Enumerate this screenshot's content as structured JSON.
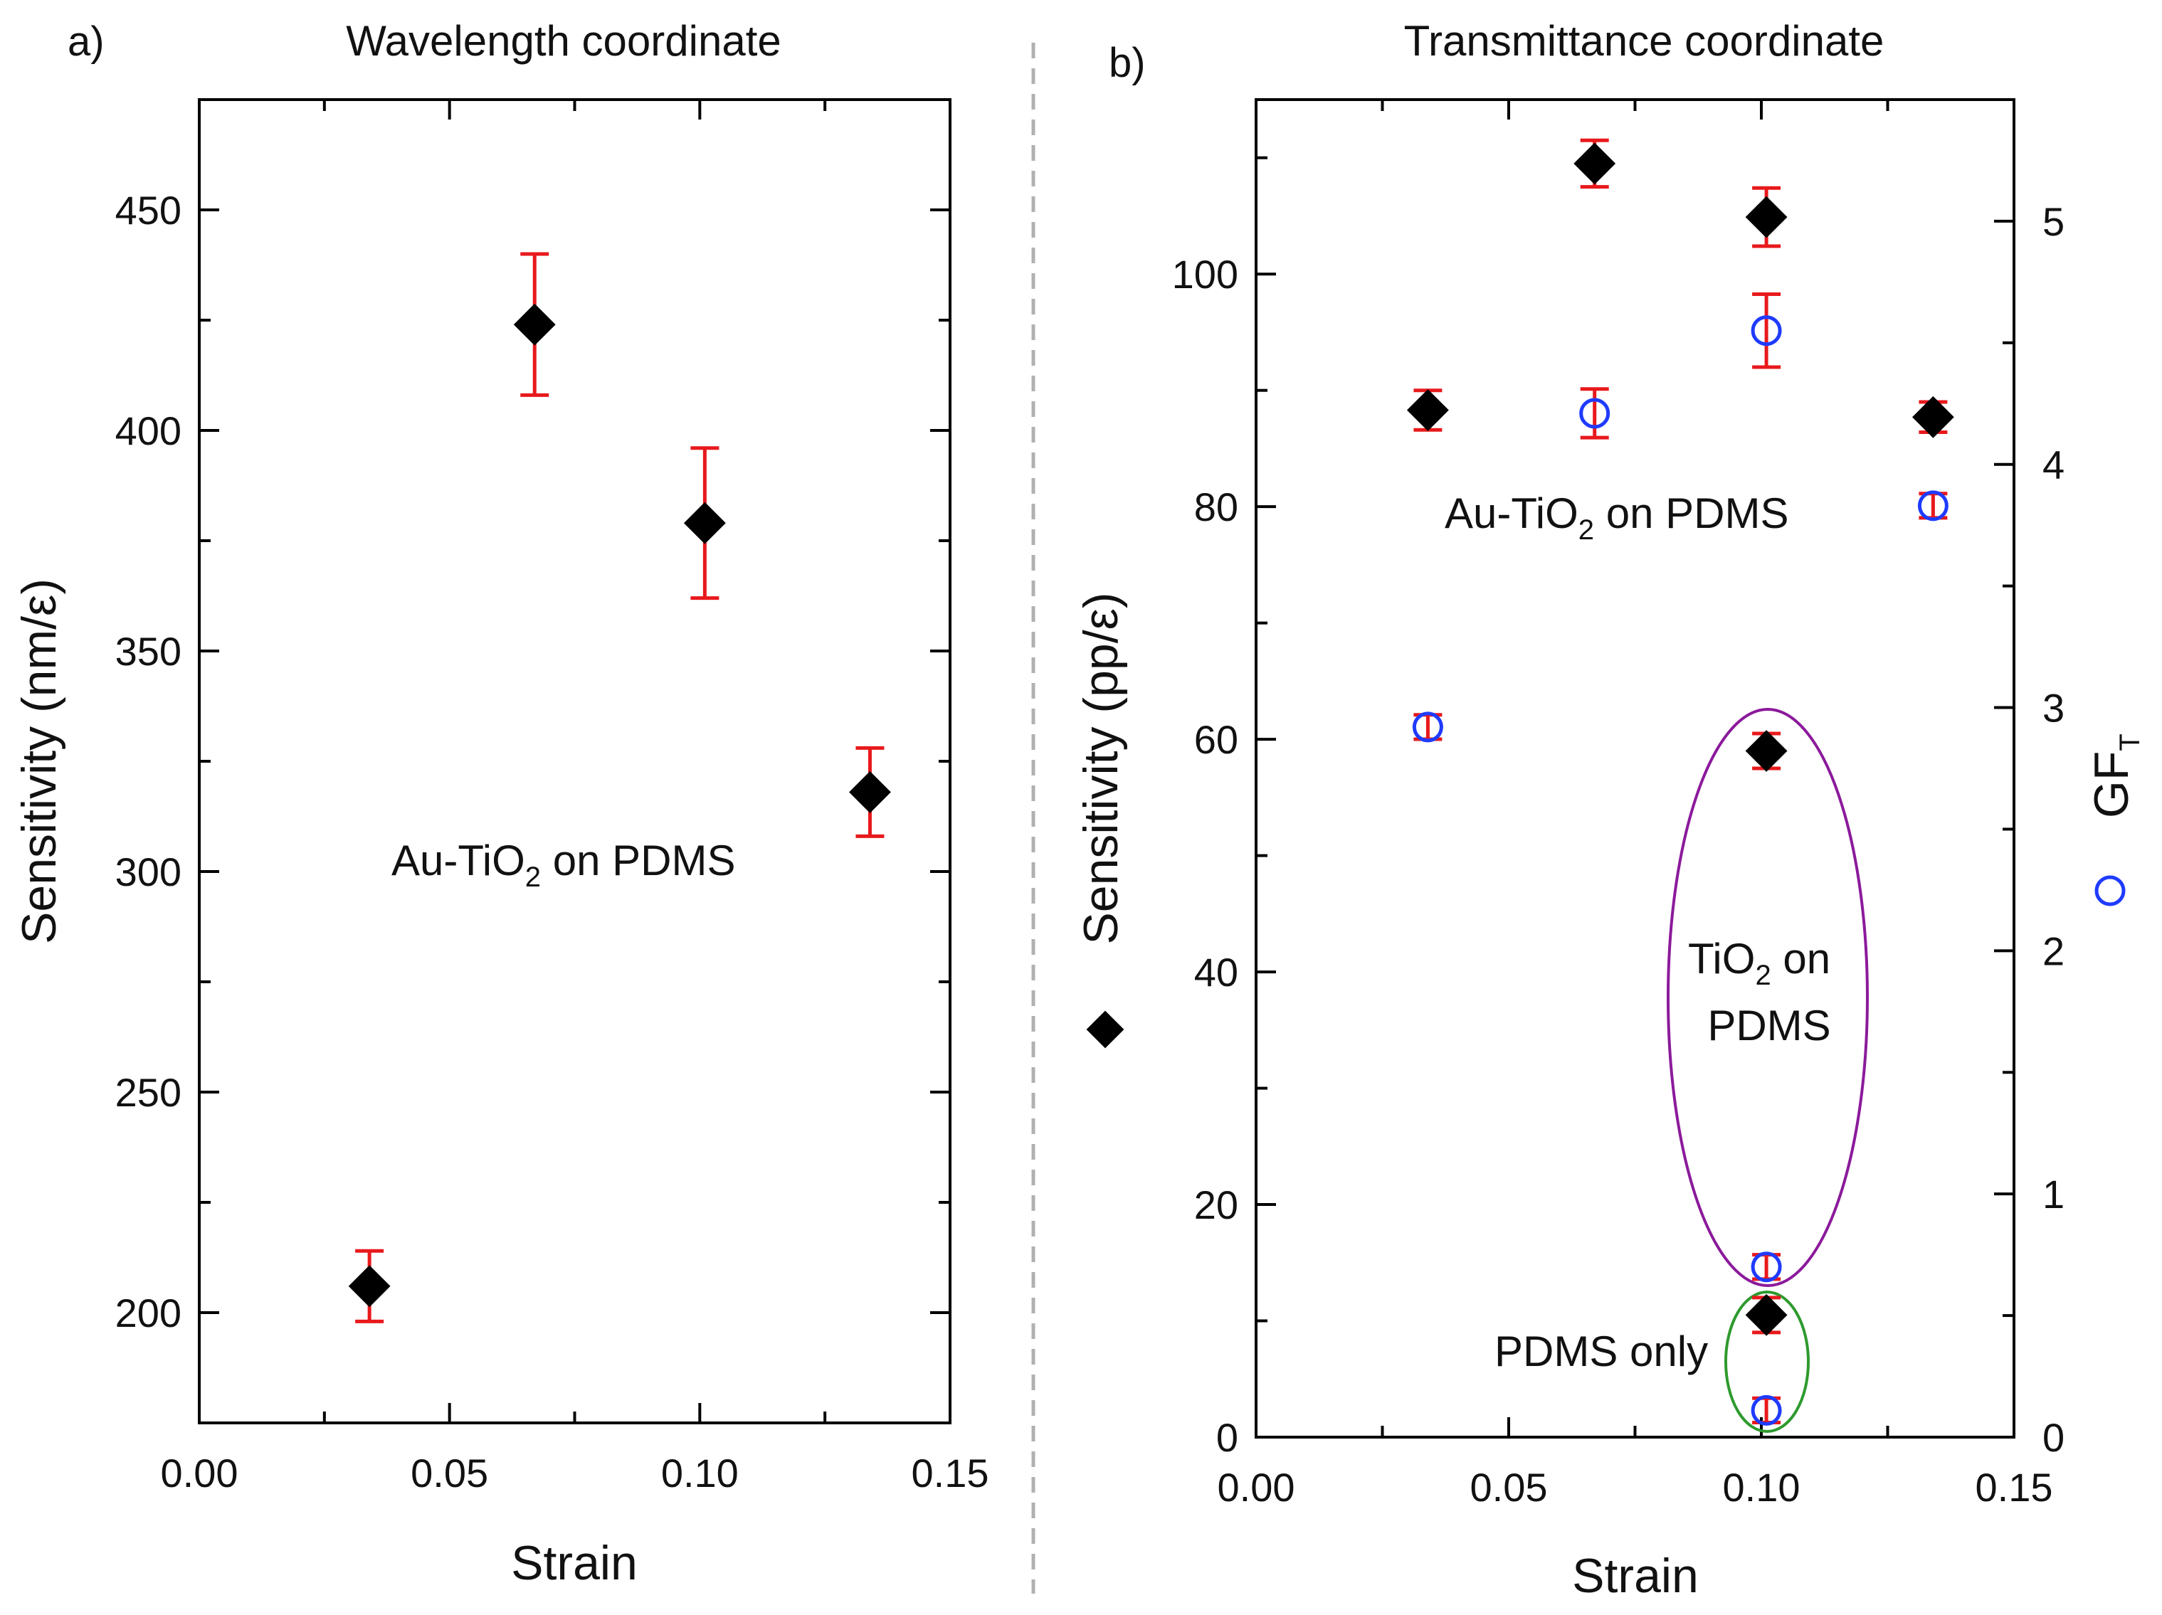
{
  "chart_data": [
    {
      "panel_label": "a)",
      "title": "Wavelength coordinate",
      "type": "scatter",
      "xlabel": "Strain",
      "ylabel": "Sensitivity (nm/ε)",
      "xlim": [
        0.0,
        0.15
      ],
      "ylim": [
        175,
        475
      ],
      "x_ticks": [
        0.0,
        0.05,
        0.1,
        0.15
      ],
      "x_tick_labels": [
        "0.00",
        "0.05",
        "0.10",
        "0.15"
      ],
      "y_ticks": [
        200,
        250,
        300,
        350,
        400,
        450
      ],
      "y_tick_labels": [
        "200",
        "250",
        "300",
        "350",
        "400",
        "450"
      ],
      "series": [
        {
          "name": "Au-TiO2 on PDMS sensitivity",
          "marker": "diamond",
          "color": "#000000",
          "error_color": "#e8191c",
          "points": [
            {
              "x": 0.034,
              "y": 206,
              "err": 8
            },
            {
              "x": 0.067,
              "y": 424,
              "err": 16
            },
            {
              "x": 0.101,
              "y": 379,
              "err": 17
            },
            {
              "x": 0.134,
              "y": 318,
              "err": 10
            }
          ]
        }
      ],
      "annotations": [
        {
          "text_main": "Au-TiO",
          "text_sub": "2",
          "text_rest": " on PDMS"
        }
      ]
    },
    {
      "panel_label": "b)",
      "title": "Transmittance coordinate",
      "type": "scatter",
      "xlabel": "Strain",
      "ylabel": "Sensitivity (pp/ε)",
      "y2label_main": "GF",
      "y2label_sub": "T",
      "xlim": [
        0.0,
        0.15
      ],
      "ylim": [
        0,
        115
      ],
      "y2lim": [
        0,
        5.5
      ],
      "x_ticks": [
        0.0,
        0.05,
        0.1,
        0.15
      ],
      "x_tick_labels": [
        "0.00",
        "0.05",
        "0.10",
        "0.15"
      ],
      "y_ticks": [
        0,
        20,
        40,
        60,
        80,
        100
      ],
      "y_tick_labels": [
        "0",
        "20",
        "40",
        "60",
        "80",
        "100"
      ],
      "y2_ticks": [
        0,
        1,
        2,
        3,
        4,
        5
      ],
      "y2_tick_labels": [
        "0",
        "1",
        "2",
        "3",
        "4",
        "5"
      ],
      "series": [
        {
          "name": "Sensitivity (left axis)",
          "axis": "left",
          "marker": "diamond",
          "color": "#000000",
          "error_color": "#e8191c",
          "points": [
            {
              "x": 0.034,
              "y": 88.3,
              "err": 1.7,
              "group": "Au-TiO2 on PDMS"
            },
            {
              "x": 0.067,
              "y": 109.5,
              "err": 2.0,
              "group": "Au-TiO2 on PDMS"
            },
            {
              "x": 0.101,
              "y": 104.9,
              "err": 2.5,
              "group": "Au-TiO2 on PDMS"
            },
            {
              "x": 0.134,
              "y": 87.7,
              "err": 1.3,
              "group": "Au-TiO2 on PDMS"
            },
            {
              "x": 0.101,
              "y": 59.0,
              "err": 1.5,
              "group": "TiO2 on PDMS"
            },
            {
              "x": 0.101,
              "y": 10.5,
              "err": 1.5,
              "group": "PDMS only"
            }
          ]
        },
        {
          "name": "GF_T (right axis)",
          "axis": "right",
          "marker": "open circle",
          "color": "#1f3bff",
          "error_color": "#e8191c",
          "points": [
            {
              "x": 0.034,
              "y": 2.92,
              "err": 0.05,
              "group": "Au-TiO2 on PDMS"
            },
            {
              "x": 0.067,
              "y": 4.21,
              "err": 0.1,
              "group": "Au-TiO2 on PDMS"
            },
            {
              "x": 0.101,
              "y": 4.55,
              "err": 0.15,
              "group": "Au-TiO2 on PDMS"
            },
            {
              "x": 0.134,
              "y": 3.83,
              "err": 0.05,
              "group": "Au-TiO2 on PDMS"
            },
            {
              "x": 0.101,
              "y": 0.7,
              "err": 0.05,
              "group": "TiO2 on PDMS"
            },
            {
              "x": 0.101,
              "y": 0.11,
              "err": 0.05,
              "group": "PDMS only"
            }
          ]
        }
      ],
      "annotations": [
        {
          "text_main": "Au-TiO",
          "text_sub": "2",
          "text_rest": " on PDMS"
        },
        {
          "line1_main": "TiO",
          "line1_sub": "2",
          "line1_rest": " on",
          "line2": "PDMS"
        },
        {
          "text": "PDMS only"
        }
      ],
      "highlight_colors": {
        "tio2_ellipse": "#8b1a9b",
        "pdms_ellipse": "#2e9a2e"
      }
    }
  ]
}
